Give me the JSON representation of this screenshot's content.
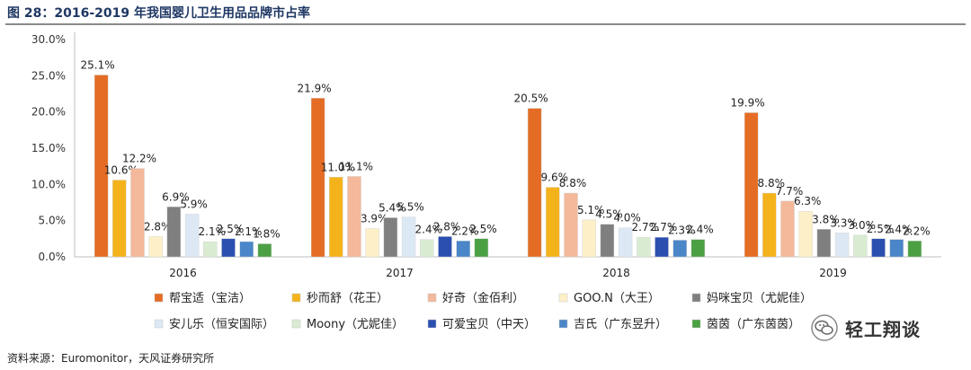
{
  "title": "图 28：2016-2019 年我国婴儿卫生用品品牌市占率",
  "source": "资料来源：Euromonitor，天风证券研究所",
  "watermark": {
    "name": "轻工翔谈",
    "icon": "wechat-icon"
  },
  "chart_data": {
    "type": "bar",
    "categories": [
      "2016",
      "2017",
      "2018",
      "2019"
    ],
    "ylim": [
      0,
      30
    ],
    "yticks": [
      "0.0%",
      "5.0%",
      "10.0%",
      "15.0%",
      "20.0%",
      "25.0%",
      "30.0%"
    ],
    "grid": false,
    "legend_position": "bottom",
    "series": [
      {
        "name": "帮宝适（宝洁）",
        "color": "#e46c24",
        "values": [
          25.1,
          21.9,
          20.5,
          19.9
        ],
        "labels": [
          "25.1%",
          "21.9%",
          "20.5%",
          "19.9%"
        ]
      },
      {
        "name": "秒而舒（花王）",
        "color": "#f5b31b",
        "values": [
          10.6,
          11.0,
          9.6,
          8.8
        ],
        "labels": [
          "10.6%",
          "11.0%",
          "9.6%",
          "8.8%"
        ]
      },
      {
        "name": "好奇（金佰利）",
        "color": "#f4b89a",
        "values": [
          12.2,
          11.1,
          8.8,
          7.7
        ],
        "labels": [
          "12.2%",
          "11.1%",
          "8.8%",
          "7.7%"
        ]
      },
      {
        "name": "GOO.N（大王）",
        "color": "#fdf0c8",
        "values": [
          2.8,
          3.9,
          5.1,
          6.3
        ],
        "labels": [
          "2.8%",
          "3.9%",
          "5.1%",
          "6.3%"
        ]
      },
      {
        "name": "妈咪宝贝（尤妮佳）",
        "color": "#7f7f7f",
        "values": [
          6.9,
          5.4,
          4.5,
          3.8
        ],
        "labels": [
          "6.9%",
          "5.4%",
          "4.5%",
          "3.8%"
        ]
      },
      {
        "name": "安儿乐（恒安国际）",
        "color": "#dde8f5",
        "values": [
          5.9,
          5.5,
          4.0,
          3.3
        ],
        "labels": [
          "5.9%",
          "5.5%",
          "4.0%",
          "3.3%"
        ]
      },
      {
        "name": "Moony（尤妮佳）",
        "color": "#d9ecd2",
        "values": [
          2.1,
          2.4,
          2.7,
          3.0
        ],
        "labels": [
          "2.1%",
          "2.4%",
          "2.7%",
          "3.0%"
        ]
      },
      {
        "name": "可爱宝贝（中天）",
        "color": "#2b4fb0",
        "values": [
          2.5,
          2.8,
          2.7,
          2.5
        ],
        "labels": [
          "2.5%",
          "2.8%",
          "2.7%",
          "2.5%"
        ]
      },
      {
        "name": "吉氏（广东昱升）",
        "color": "#4a86c8",
        "values": [
          2.1,
          2.2,
          2.3,
          2.4
        ],
        "labels": [
          "2.1%",
          "2.2%",
          "2.3%",
          "2.4%"
        ]
      },
      {
        "name": "茵茵（广东茵茵）",
        "color": "#4aa042",
        "values": [
          1.8,
          2.5,
          2.4,
          2.2
        ],
        "labels": [
          "1.8%",
          "2.5%",
          "2.4%",
          "2.2%"
        ]
      }
    ]
  }
}
